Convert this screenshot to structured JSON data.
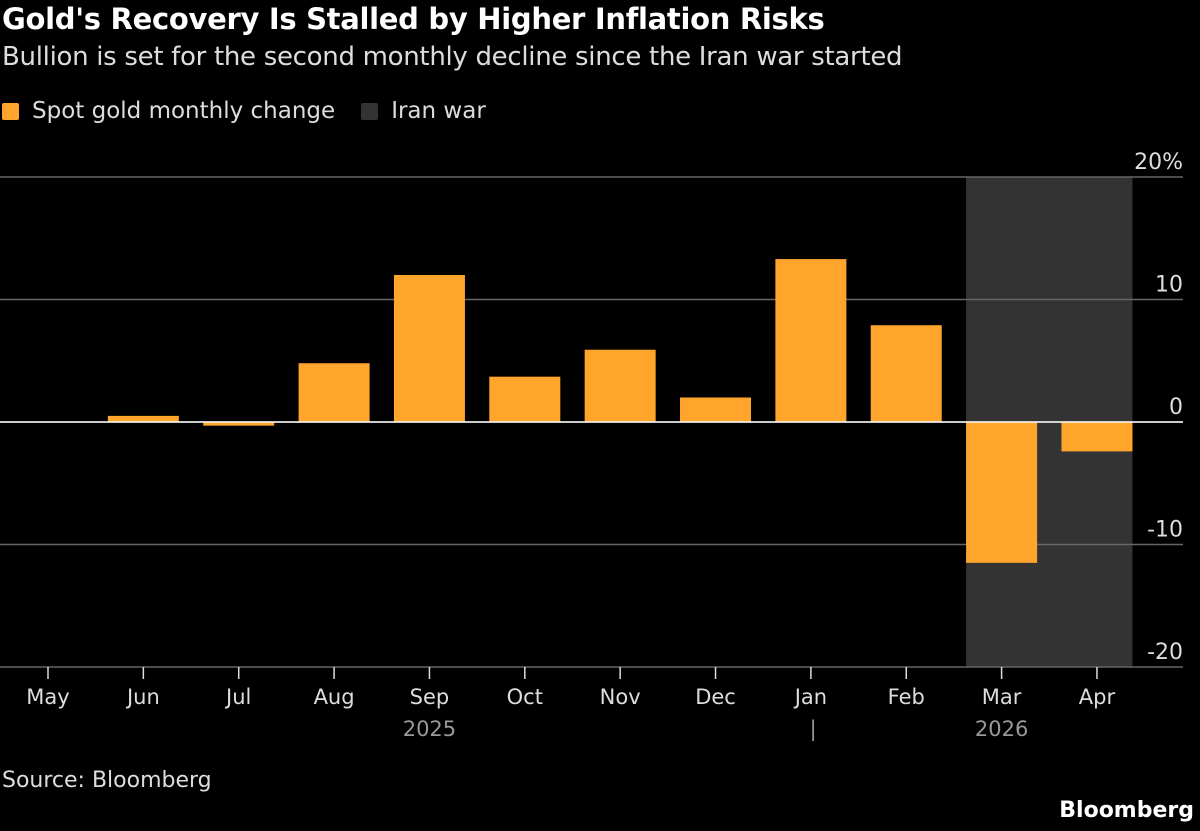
{
  "chart_data": {
    "type": "bar",
    "title": "Gold's Recovery Is Stalled by Higher Inflation Risks",
    "subtitle": "Bullion is set for the second monthly decline since the Iran war started",
    "categories": [
      "May",
      "Jun",
      "Jul",
      "Aug",
      "Sep",
      "Oct",
      "Nov",
      "Dec",
      "Jan",
      "Feb",
      "Mar",
      "Apr"
    ],
    "year_labels": [
      {
        "label": "2025",
        "category": "Sep"
      },
      {
        "label": "2026",
        "category": "Mar"
      }
    ],
    "year_divider_label": "|",
    "series": [
      {
        "name": "Spot gold monthly change",
        "color": "#ffa52c",
        "values": [
          0,
          0.5,
          -0.3,
          4.8,
          12.0,
          3.7,
          5.9,
          2.0,
          13.3,
          7.9,
          -11.5,
          -2.4
        ]
      }
    ],
    "shaded_region": {
      "name": "Iran war",
      "color": "#333333",
      "from": "Mar",
      "to": "Apr"
    },
    "ylim": [
      -20,
      20
    ],
    "yticks": [
      20,
      10,
      0,
      -10,
      -20
    ],
    "ytick_labels": [
      "20%",
      "10",
      "0",
      "-10",
      "-20"
    ],
    "grid": true,
    "legend_position": "top-left",
    "source": "Source: Bloomberg",
    "brand": "Bloomberg"
  }
}
